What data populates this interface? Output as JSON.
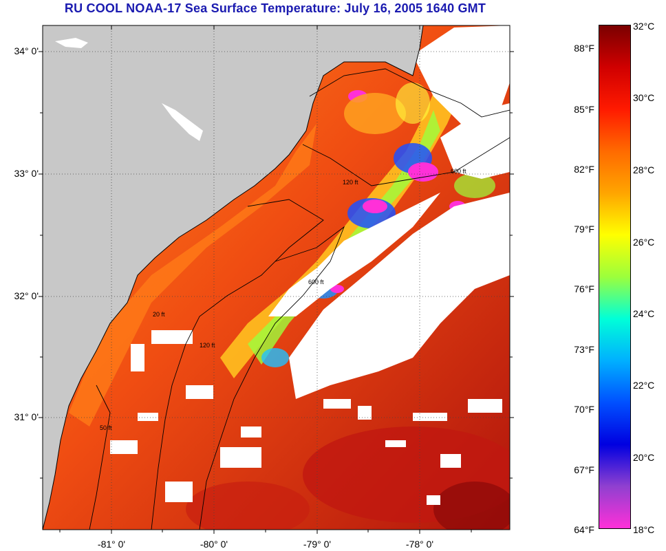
{
  "header": {
    "title": "RU COOL  NOAA-17  Sea Surface Temperature:  July 16, 2005 1640 GMT"
  },
  "map": {
    "latitude_labels": [
      "34° 0'",
      "33° 0'",
      "32° 0'",
      "31° 0'"
    ],
    "longitude_labels": [
      "-81° 0'",
      "-80° 0'",
      "-79° 0'",
      "-78° 0'"
    ],
    "isobath_labels": {
      "depth_20": "20 ft",
      "depth_50": "50 ft",
      "depth_120": "120 ft",
      "depth_600": "600 ft"
    },
    "colors": {
      "land": "#c8c8c8",
      "cloud": "#ffffff",
      "warm": "#f05a14",
      "hot": "#c81e10",
      "front": "#ff9b1e"
    }
  },
  "colorbar": {
    "fahrenheit_labels": [
      "88°F",
      "85°F",
      "82°F",
      "79°F",
      "76°F",
      "73°F",
      "70°F",
      "67°F",
      "64°F"
    ],
    "celsius_labels": [
      "32°C",
      "30°C",
      "28°C",
      "26°C",
      "24°C",
      "22°C",
      "20°C",
      "18°C"
    ],
    "gradient_stops": [
      "#7a0000",
      "#d00000",
      "#ff1a00",
      "#ff6a00",
      "#ffa500",
      "#ffff00",
      "#9cff3c",
      "#00ffd8",
      "#00b0ff",
      "#0050ff",
      "#0000e0",
      "#9040d0",
      "#ff30d8"
    ]
  }
}
